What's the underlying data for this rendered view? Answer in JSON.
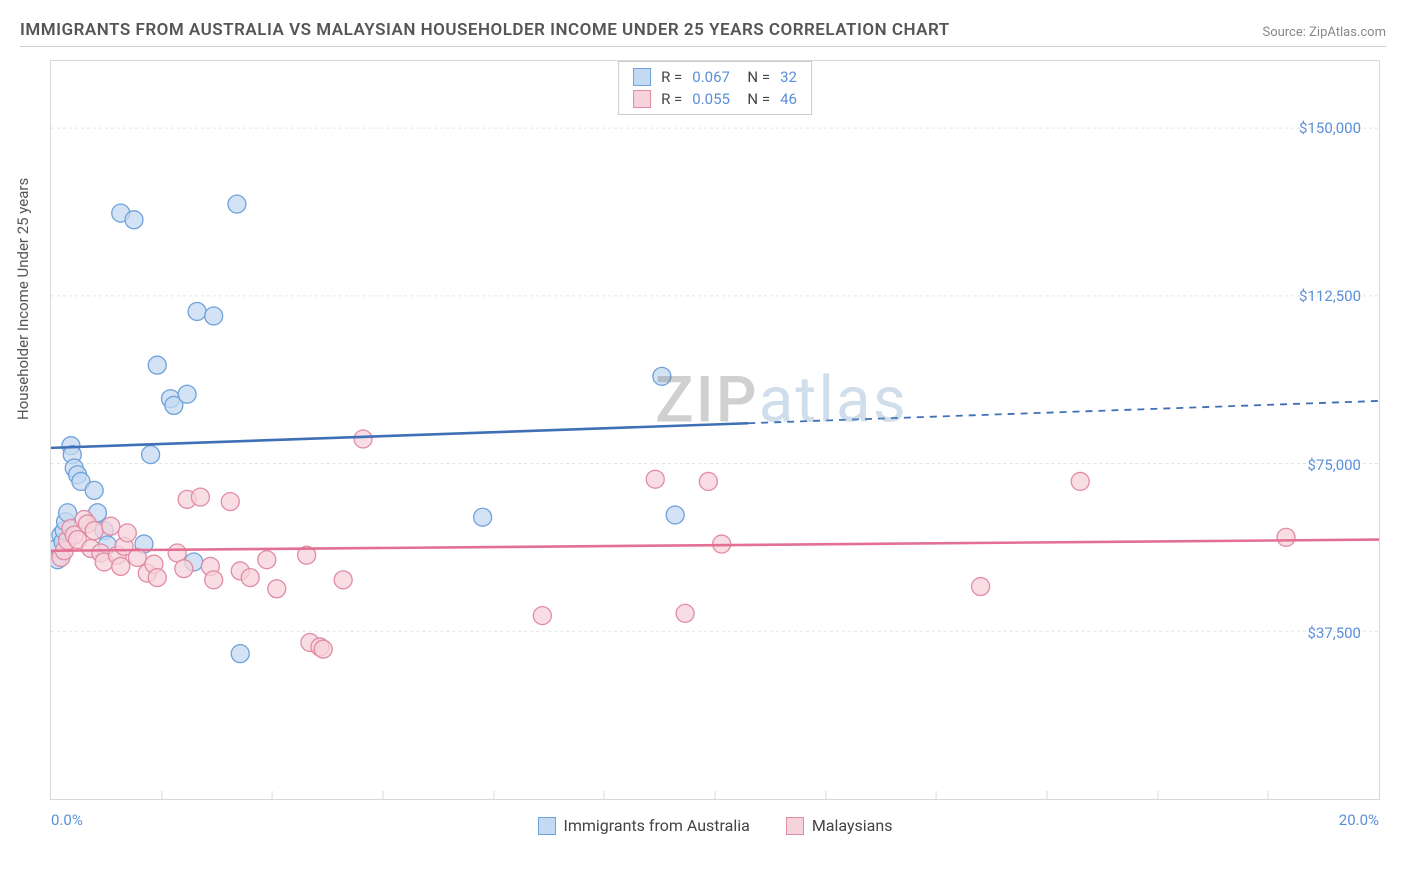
{
  "title": "IMMIGRANTS FROM AUSTRALIA VS MALAYSIAN HOUSEHOLDER INCOME UNDER 25 YEARS CORRELATION CHART",
  "source_label": "Source: ZipAtlas.com",
  "y_axis_label": "Householder Income Under 25 years",
  "watermark": {
    "part1": "ZIP",
    "part2": "atlas"
  },
  "chart": {
    "type": "scatter",
    "background_color": "#ffffff",
    "grid_color": "#e3e3e3",
    "border_color": "#d8d8d8",
    "xlim": [
      0,
      20
    ],
    "ylim": [
      0,
      165000
    ],
    "y_ticks": [
      {
        "v": 37500,
        "label": "$37,500"
      },
      {
        "v": 75000,
        "label": "$75,000"
      },
      {
        "v": 112500,
        "label": "$112,500"
      },
      {
        "v": 150000,
        "label": "$150,000"
      }
    ],
    "x_tick_left": "0.0%",
    "x_tick_right": "20.0%",
    "x_minor_ticks": [
      1.67,
      3.33,
      5.0,
      6.67,
      8.33,
      10.0,
      11.67,
      13.33,
      15.0,
      16.67,
      18.33
    ],
    "marker_radius": 9,
    "marker_stroke_width": 1.3,
    "trend_line_width": 2.6,
    "trend_dash": "7 6",
    "series": [
      {
        "key": "australia",
        "name": "Immigrants from Australia",
        "fill": "#c4daf2",
        "stroke": "#6fa2d9",
        "line_color": "#3f6fb5",
        "r": "0.067",
        "n": "32",
        "trend": {
          "y_at_xmin": 78500,
          "y_at_xmax": 89000,
          "solid_until_x": 10.5
        },
        "points": [
          {
            "x": 0.08,
            "y": 56000
          },
          {
            "x": 0.1,
            "y": 53500
          },
          {
            "x": 0.15,
            "y": 59000
          },
          {
            "x": 0.18,
            "y": 57500
          },
          {
            "x": 0.2,
            "y": 60000
          },
          {
            "x": 0.22,
            "y": 62000
          },
          {
            "x": 0.25,
            "y": 64000
          },
          {
            "x": 0.3,
            "y": 79000
          },
          {
            "x": 0.32,
            "y": 77000
          },
          {
            "x": 0.35,
            "y": 74000
          },
          {
            "x": 0.4,
            "y": 72500
          },
          {
            "x": 0.45,
            "y": 71000
          },
          {
            "x": 0.65,
            "y": 69000
          },
          {
            "x": 0.7,
            "y": 64000
          },
          {
            "x": 0.8,
            "y": 60000
          },
          {
            "x": 0.85,
            "y": 56800
          },
          {
            "x": 1.05,
            "y": 131000
          },
          {
            "x": 1.25,
            "y": 129500
          },
          {
            "x": 1.4,
            "y": 57000
          },
          {
            "x": 1.5,
            "y": 77000
          },
          {
            "x": 1.6,
            "y": 97000
          },
          {
            "x": 1.8,
            "y": 89500
          },
          {
            "x": 1.85,
            "y": 88000
          },
          {
            "x": 2.05,
            "y": 90500
          },
          {
            "x": 2.15,
            "y": 53000
          },
          {
            "x": 2.2,
            "y": 109000
          },
          {
            "x": 2.45,
            "y": 108000
          },
          {
            "x": 2.8,
            "y": 133000
          },
          {
            "x": 2.85,
            "y": 32500
          },
          {
            "x": 6.5,
            "y": 63000
          },
          {
            "x": 9.2,
            "y": 94500
          },
          {
            "x": 9.4,
            "y": 63500
          }
        ]
      },
      {
        "key": "malaysia",
        "name": "Malaysians",
        "fill": "#f6d2db",
        "stroke": "#e18ba5",
        "line_color": "#e36f93",
        "r": "0.055",
        "n": "46",
        "trend": {
          "y_at_xmin": 55500,
          "y_at_xmax": 58000,
          "solid_until_x": 20
        },
        "points": [
          {
            "x": 0.15,
            "y": 54000
          },
          {
            "x": 0.2,
            "y": 55500
          },
          {
            "x": 0.25,
            "y": 57800
          },
          {
            "x": 0.3,
            "y": 60500
          },
          {
            "x": 0.35,
            "y": 59000
          },
          {
            "x": 0.4,
            "y": 58000
          },
          {
            "x": 0.5,
            "y": 62500
          },
          {
            "x": 0.55,
            "y": 61500
          },
          {
            "x": 0.6,
            "y": 56000
          },
          {
            "x": 0.65,
            "y": 60000
          },
          {
            "x": 0.75,
            "y": 55000
          },
          {
            "x": 0.8,
            "y": 53000
          },
          {
            "x": 0.9,
            "y": 61000
          },
          {
            "x": 1.0,
            "y": 54500
          },
          {
            "x": 1.05,
            "y": 52000
          },
          {
            "x": 1.1,
            "y": 56500
          },
          {
            "x": 1.15,
            "y": 59500
          },
          {
            "x": 1.3,
            "y": 54000
          },
          {
            "x": 1.45,
            "y": 50500
          },
          {
            "x": 1.55,
            "y": 52500
          },
          {
            "x": 1.6,
            "y": 49500
          },
          {
            "x": 1.9,
            "y": 55000
          },
          {
            "x": 2.0,
            "y": 51500
          },
          {
            "x": 2.05,
            "y": 67000
          },
          {
            "x": 2.25,
            "y": 67500
          },
          {
            "x": 2.4,
            "y": 52000
          },
          {
            "x": 2.45,
            "y": 49000
          },
          {
            "x": 2.7,
            "y": 66500
          },
          {
            "x": 2.85,
            "y": 51000
          },
          {
            "x": 3.0,
            "y": 49500
          },
          {
            "x": 3.25,
            "y": 53500
          },
          {
            "x": 3.4,
            "y": 47000
          },
          {
            "x": 3.85,
            "y": 54500
          },
          {
            "x": 3.9,
            "y": 35000
          },
          {
            "x": 4.05,
            "y": 34000
          },
          {
            "x": 4.1,
            "y": 33500
          },
          {
            "x": 4.4,
            "y": 49000
          },
          {
            "x": 4.7,
            "y": 80500
          },
          {
            "x": 7.4,
            "y": 41000
          },
          {
            "x": 9.1,
            "y": 71500
          },
          {
            "x": 9.55,
            "y": 41500
          },
          {
            "x": 9.9,
            "y": 71000
          },
          {
            "x": 10.1,
            "y": 57000
          },
          {
            "x": 14.0,
            "y": 47500
          },
          {
            "x": 15.5,
            "y": 71000
          },
          {
            "x": 18.6,
            "y": 58500
          }
        ]
      }
    ]
  },
  "colors": {
    "tick_label": "#5b8fd8",
    "title": "#555555",
    "source": "#888888",
    "axis_label": "#555555"
  }
}
